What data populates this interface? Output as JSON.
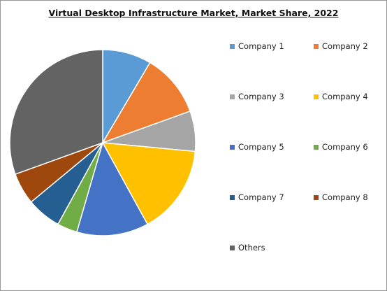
{
  "chart_data": {
    "type": "pie",
    "title": "Virtual Desktop Infrastructure Market, Market Share, 2022",
    "legend_position": "right",
    "slices": [
      {
        "label": "Company 1",
        "value": 8.5,
        "color": "#5B9BD5"
      },
      {
        "label": "Company 2",
        "value": 11.0,
        "color": "#ED7D31"
      },
      {
        "label": "Company 3",
        "value": 7.0,
        "color": "#A5A5A5"
      },
      {
        "label": "Company 4",
        "value": 15.5,
        "color": "#FFC000"
      },
      {
        "label": "Company 5",
        "value": 12.5,
        "color": "#4472C4"
      },
      {
        "label": "Company 6",
        "value": 3.5,
        "color": "#70AD47"
      },
      {
        "label": "Company 7",
        "value": 6.0,
        "color": "#255E91"
      },
      {
        "label": "Company 8",
        "value": 5.5,
        "color": "#9E480E"
      },
      {
        "label": "Others",
        "value": 30.5,
        "color": "#636363"
      }
    ]
  }
}
